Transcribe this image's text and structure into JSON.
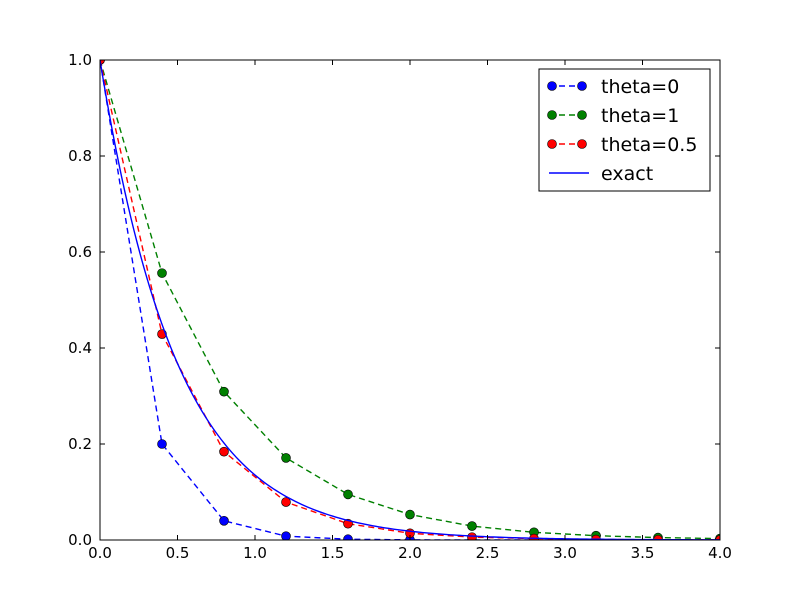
{
  "chart_data": {
    "type": "line",
    "title": "",
    "xlabel": "",
    "ylabel": "",
    "xlim": [
      0,
      4
    ],
    "ylim": [
      0,
      1
    ],
    "x_ticks": [
      "0.0",
      "0.5",
      "1.0",
      "1.5",
      "2.0",
      "2.5",
      "3.0",
      "3.5",
      "4.0"
    ],
    "y_ticks": [
      "0.0",
      "0.2",
      "0.4",
      "0.6",
      "0.8",
      "1.0"
    ],
    "grid": false,
    "legend_position": "top-right",
    "series": [
      {
        "name": "theta=0",
        "color": "#0000ff",
        "style": "dashed",
        "marker": "circle",
        "x": [
          0.0,
          0.4,
          0.8,
          1.2,
          1.6,
          2.0,
          2.4,
          2.8,
          3.2,
          3.6,
          4.0
        ],
        "y": [
          1.0,
          0.2,
          0.04,
          0.008,
          0.0016,
          0.0003,
          0.0001,
          0.0,
          0.0,
          0.0,
          0.0
        ]
      },
      {
        "name": "theta=1",
        "color": "#008000",
        "style": "dashed",
        "marker": "circle",
        "x": [
          0.0,
          0.4,
          0.8,
          1.2,
          1.6,
          2.0,
          2.4,
          2.8,
          3.2,
          3.6,
          4.0
        ],
        "y": [
          1.0,
          0.556,
          0.309,
          0.171,
          0.095,
          0.053,
          0.029,
          0.016,
          0.009,
          0.005,
          0.003
        ]
      },
      {
        "name": "theta=0.5",
        "color": "#ff0000",
        "style": "dashed",
        "marker": "circle",
        "x": [
          0.0,
          0.4,
          0.8,
          1.2,
          1.6,
          2.0,
          2.4,
          2.8,
          3.2,
          3.6,
          4.0
        ],
        "y": [
          1.0,
          0.429,
          0.184,
          0.079,
          0.034,
          0.014,
          0.006,
          0.003,
          0.001,
          0.0005,
          0.0002
        ]
      },
      {
        "name": "exact",
        "color": "#0000ff",
        "style": "solid",
        "marker": "none",
        "function": "exp(-2x)"
      }
    ]
  }
}
